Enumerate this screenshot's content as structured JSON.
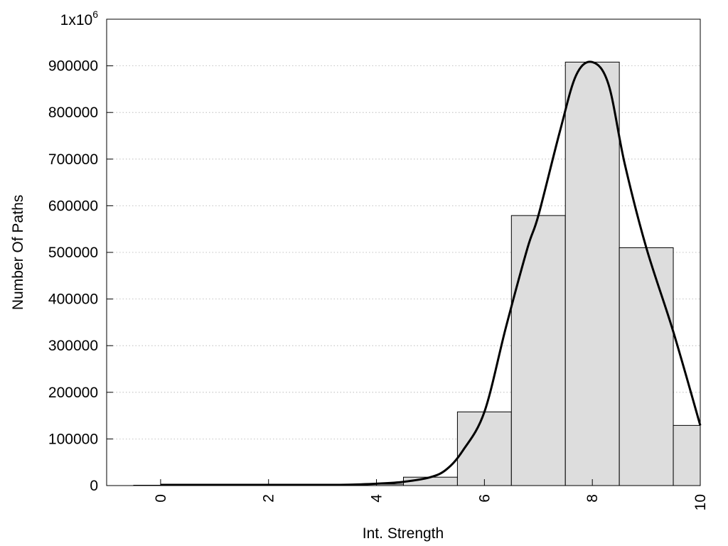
{
  "chart_data": {
    "type": "bar",
    "title": "",
    "xlabel": "Int. Strength",
    "ylabel": "Number Of Paths",
    "xlim": [
      -1,
      10
    ],
    "ylim": [
      0,
      1000000
    ],
    "grid": true,
    "bar_color": "#dddddd",
    "curve_color": "#000000",
    "x_ticks": [
      {
        "value": 0,
        "label": "0"
      },
      {
        "value": 2,
        "label": "2"
      },
      {
        "value": 4,
        "label": "4"
      },
      {
        "value": 6,
        "label": "6"
      },
      {
        "value": 8,
        "label": "8"
      },
      {
        "value": 10,
        "label": "10"
      }
    ],
    "y_ticks": [
      {
        "value": 0,
        "label": "0"
      },
      {
        "value": 100000,
        "label": "100000"
      },
      {
        "value": 200000,
        "label": "200000"
      },
      {
        "value": 300000,
        "label": "300000"
      },
      {
        "value": 400000,
        "label": "400000"
      },
      {
        "value": 500000,
        "label": "500000"
      },
      {
        "value": 600000,
        "label": "600000"
      },
      {
        "value": 700000,
        "label": "700000"
      },
      {
        "value": 800000,
        "label": "800000"
      },
      {
        "value": 900000,
        "label": "900000"
      }
    ],
    "y_top_label": {
      "base": "1x10",
      "exp": "6"
    },
    "bars": [
      {
        "x": 0,
        "value": 0
      },
      {
        "x": 1,
        "value": 0
      },
      {
        "x": 2,
        "value": 0
      },
      {
        "x": 3,
        "value": 0
      },
      {
        "x": 4,
        "value": 3000
      },
      {
        "x": 5,
        "value": 18000
      },
      {
        "x": 6,
        "value": 158000
      },
      {
        "x": 7,
        "value": 579000
      },
      {
        "x": 8,
        "value": 908000
      },
      {
        "x": 9,
        "value": 510000
      },
      {
        "x": 10,
        "value": 129000
      }
    ],
    "curve": [
      [
        0,
        0
      ],
      [
        1,
        0
      ],
      [
        2,
        0
      ],
      [
        3,
        1000
      ],
      [
        3.5,
        2000
      ],
      [
        4,
        4000
      ],
      [
        4.5,
        8000
      ],
      [
        5,
        18000
      ],
      [
        5.3,
        35000
      ],
      [
        5.6,
        75000
      ],
      [
        6,
        158000
      ],
      [
        6.4,
        340000
      ],
      [
        6.8,
        510000
      ],
      [
        7,
        579000
      ],
      [
        7.4,
        760000
      ],
      [
        7.7,
        880000
      ],
      [
        8,
        908000
      ],
      [
        8.3,
        860000
      ],
      [
        8.6,
        690000
      ],
      [
        9,
        510000
      ],
      [
        9.5,
        330000
      ],
      [
        10,
        129000
      ]
    ]
  }
}
